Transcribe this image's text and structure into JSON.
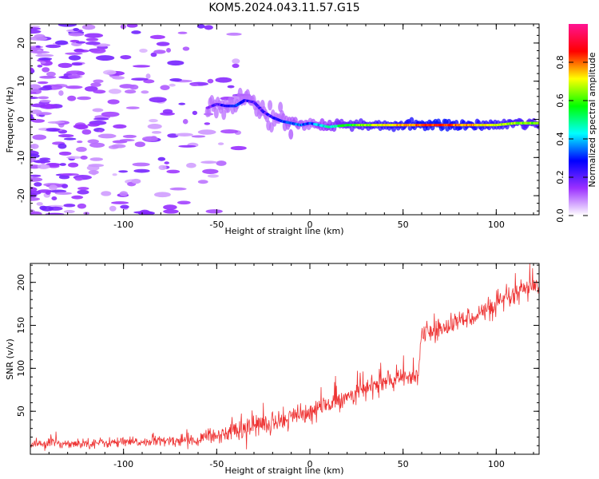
{
  "title": "KOM5.2024.043.11.57.G15",
  "chart_data": [
    {
      "type": "heatmap",
      "name": "spectrogram",
      "xlabel": "Height of straight line (km)",
      "ylabel": "Frequency (Hz)",
      "xlim": [
        -150,
        123
      ],
      "ylim": [
        -25,
        25
      ],
      "xticks": [
        -100,
        -50,
        0,
        50,
        100
      ],
      "yticks": [
        -20,
        -10,
        0,
        10,
        20
      ],
      "colorbar": {
        "label": "Normalized spectral amplitude",
        "range": [
          0.0,
          1.0
        ],
        "ticks": [
          "0.0",
          "0.2",
          "0.4",
          "0.6",
          "0.8"
        ],
        "colormap": [
          "#ffffff",
          "#9b30ff",
          "#0000ff",
          "#00ffff",
          "#00ff00",
          "#ffff00",
          "#ff0000",
          "#ff1493"
        ]
      },
      "ridge": {
        "x": [
          -55,
          -50,
          -45,
          -40,
          -35,
          -30,
          -25,
          -20,
          -15,
          -10,
          -5,
          0,
          5,
          10,
          20,
          30,
          40,
          50,
          60,
          70,
          80,
          90,
          100,
          110,
          123
        ],
        "frequency": [
          3.0,
          4.0,
          3.5,
          3.5,
          5.0,
          4.5,
          2.0,
          0.5,
          -0.5,
          -1.0,
          -1.5,
          -1.0,
          -1.5,
          -2.0,
          -1.5,
          -1.5,
          -1.5,
          -1.5,
          -1.5,
          -1.5,
          -1.5,
          -1.5,
          -1.5,
          -1.0,
          -1.0
        ],
        "amplitude": [
          0.15,
          0.2,
          0.25,
          0.3,
          0.25,
          0.2,
          0.2,
          0.25,
          0.3,
          0.35,
          0.35,
          0.3,
          0.4,
          0.45,
          0.55,
          0.65,
          0.7,
          0.75,
          0.8,
          0.85,
          0.8,
          0.75,
          0.7,
          0.65,
          0.6
        ]
      },
      "noise_band": {
        "x_range": [
          -150,
          -60
        ],
        "frequency_range": [
          -25,
          25
        ],
        "amplitude": 0.05
      }
    },
    {
      "type": "line",
      "name": "snr",
      "xlabel": "Height of straight line (km)",
      "ylabel": "SNR (v/v)",
      "xlim": [
        -150,
        123
      ],
      "ylim": [
        0,
        222
      ],
      "xticks": [
        -100,
        -50,
        0,
        50,
        100
      ],
      "yticks": [
        50,
        100,
        150,
        200
      ],
      "series": [
        {
          "color": "#ee3333",
          "x": [
            -150,
            -120,
            -90,
            -60,
            -50,
            -40,
            -30,
            -20,
            -10,
            0,
            10,
            20,
            30,
            40,
            50,
            58,
            60,
            70,
            80,
            90,
            100,
            110,
            123
          ],
          "y": [
            12,
            13,
            14,
            17,
            22,
            28,
            33,
            38,
            43,
            48,
            58,
            68,
            76,
            84,
            88,
            94,
            138,
            145,
            155,
            163,
            172,
            185,
            198
          ],
          "noise": [
            5,
            5,
            5,
            6,
            8,
            10,
            12,
            12,
            12,
            12,
            12,
            10,
            10,
            10,
            10,
            10,
            10,
            10,
            10,
            10,
            10,
            12,
            12
          ]
        }
      ]
    }
  ]
}
